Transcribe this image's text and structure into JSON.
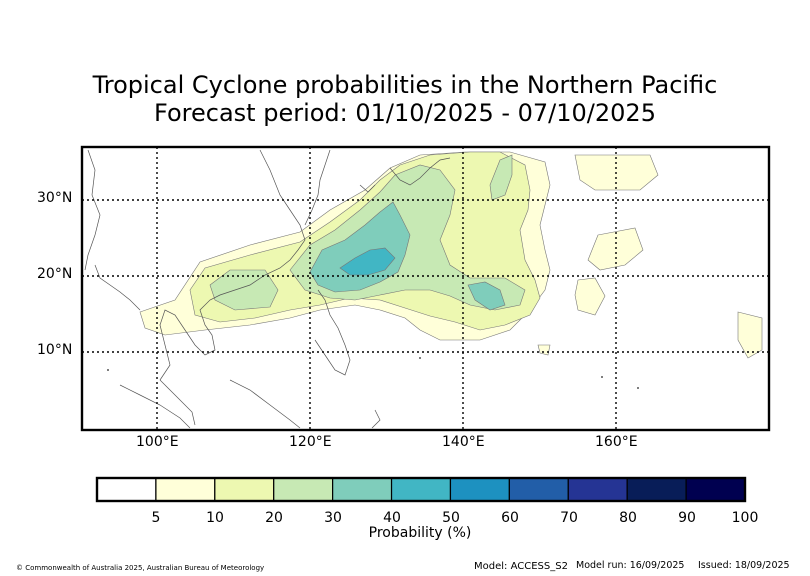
{
  "title": {
    "line1": "Tropical Cyclone probabilities in the Northern Pacific",
    "line2": "Forecast period: 01/10/2025 - 07/10/2025"
  },
  "map": {
    "lat_labels": [
      "30°N",
      "20°N",
      "10°N"
    ],
    "lon_labels": [
      "100°E",
      "120°E",
      "140°E",
      "160°E"
    ],
    "lon_range": [
      90,
      180
    ],
    "lat_range": [
      0,
      37
    ]
  },
  "colorbar": {
    "title": "Probability (%)",
    "ticks": [
      "5",
      "10",
      "20",
      "30",
      "40",
      "50",
      "60",
      "70",
      "80",
      "90",
      "100"
    ],
    "colors": [
      "#ffffff",
      "#ffffd9",
      "#edf8b1",
      "#c7e9b4",
      "#7fcdbb",
      "#41b6c4",
      "#1d91c0",
      "#225ea8",
      "#253494",
      "#081d58",
      "#000050"
    ]
  },
  "footer": {
    "copyright": "© Commonwealth of Australia 2025, Australian Bureau of Meteorology",
    "model": "Model: ACCESS_S2",
    "model_run": "Model run: 16/09/2025",
    "issued": "Issued: 18/09/2025"
  }
}
